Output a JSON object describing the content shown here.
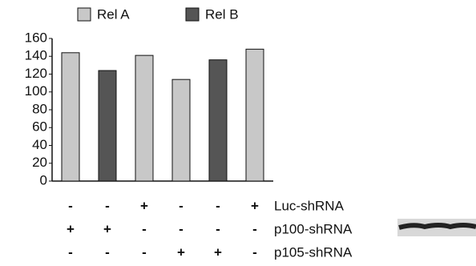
{
  "chart_data": {
    "type": "bar",
    "categories": [
      null,
      null,
      null,
      null,
      null,
      null
    ],
    "series": [
      {
        "name": "Rel A",
        "color": "#c8c8c8",
        "values": [
          144,
          null,
          141,
          114,
          null,
          148
        ]
      },
      {
        "name": "Rel B",
        "color": "#555555",
        "values": [
          null,
          124,
          null,
          null,
          136,
          null
        ]
      }
    ],
    "ylim": [
      0,
      160
    ],
    "yticks": [
      0,
      20,
      40,
      60,
      80,
      100,
      120,
      140,
      160
    ],
    "conditions": [
      {
        "label": "Luc-shRNA",
        "marks": [
          "-",
          "-",
          "+",
          "-",
          "-",
          "+"
        ]
      },
      {
        "label": "p100-shRNA",
        "marks": [
          "+",
          "+",
          "-",
          "-",
          "-",
          "-"
        ]
      },
      {
        "label": "p105-shRNA",
        "marks": [
          "-",
          "-",
          "-",
          "+",
          "+",
          "-"
        ]
      }
    ]
  }
}
